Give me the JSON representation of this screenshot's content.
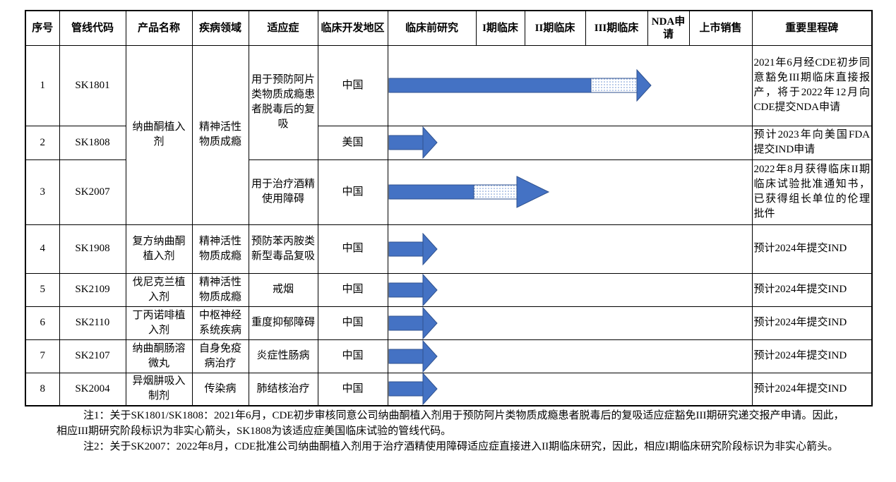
{
  "table": {
    "header": [
      "序号",
      "管线代码",
      "产品名称",
      "疾病领域",
      "适应症",
      "临床开发地区",
      "临床前研究",
      "I期临床",
      "II期临床",
      "III期临床",
      "NDA申请",
      "上市销售",
      "重要里程碑"
    ],
    "rows": [
      {
        "no": "1",
        "code": "SK1801",
        "product": "纳曲酮植入剂",
        "area": "精神活性物质成瘾",
        "indication": "用于预防阿片类物质成瘾患者脱毒后的复吸",
        "region": "中国",
        "milestone": "2021年6月经CDE初步同意豁免III期临床直接报产，将于2022年12月向CDE提交NDA申请"
      },
      {
        "no": "2",
        "code": "SK1808",
        "region": "美国",
        "milestone": "预计2023年向美国FDA提交IND申请"
      },
      {
        "no": "3",
        "code": "SK2007",
        "indication": "用于治疗酒精使用障碍",
        "region": "中国",
        "milestone": "2022年8月获得临床II期临床试验批准通知书，已获得组长单位的伦理批件"
      },
      {
        "no": "4",
        "code": "SK1908",
        "product": "复方纳曲酮植入剂",
        "area": "精神活性物质成瘾",
        "indication": "预防苯丙胺类新型毒品复吸",
        "region": "中国",
        "milestone": "预计2024年提交IND"
      },
      {
        "no": "5",
        "code": "SK2109",
        "product": "伐尼克兰植入剂",
        "area": "精神活性物质成瘾",
        "indication": "戒烟",
        "region": "中国",
        "milestone": "预计2024年提交IND"
      },
      {
        "no": "6",
        "code": "SK2110",
        "product": "丁丙诺啡植入剂",
        "area": "中枢神经系统疾病",
        "indication": "重度抑郁障碍",
        "region": "中国",
        "milestone": "预计2024年提交IND"
      },
      {
        "no": "7",
        "code": "SK2107",
        "product": "纳曲酮肠溶微丸",
        "area": "自身免疫病治疗",
        "indication": "炎症性肠病",
        "region": "中国",
        "milestone": "预计2024年提交IND"
      },
      {
        "no": "8",
        "code": "SK2004",
        "product": "异烟肼吸入制剂",
        "area": "传染病",
        "indication": "肺结核治疗",
        "region": "中国",
        "milestone": "预计2024年提交IND"
      }
    ]
  },
  "notes": [
    "注1：关于SK1801/SK1808：2021年6月，CDE初步审核同意公司纳曲酮植入剂用于预防阿片类物质成瘾患者脱毒后的复吸适应症豁免III期研究递交报产申请。因此，相应III期研究阶段标识为非实心箭头，SK1808为该适应症美国临床试验的管线代码。",
    "注2：关于SK2007：2022年8月，CDE批准公司纳曲酮植入剂用于治疗酒精使用障碍适应症直接进入II期临床研究，因此，相应I期临床研究阶段标识为非实心箭头。"
  ]
}
